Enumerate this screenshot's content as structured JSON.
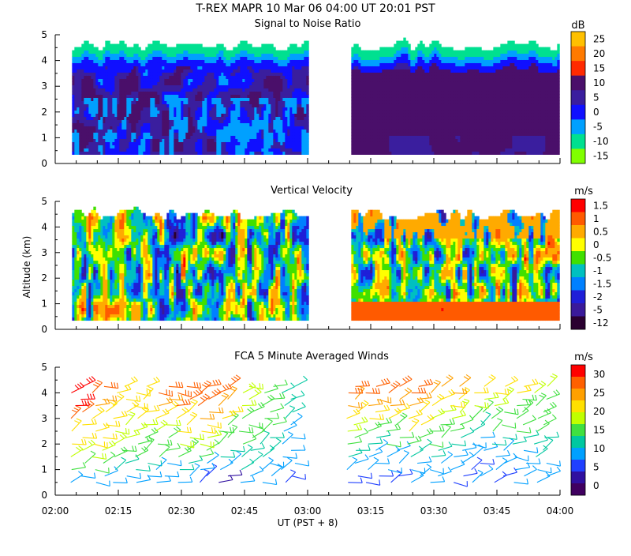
{
  "figure": {
    "title": "T-REX   MAPR 10 Mar 06   04:00 UT   20:01   PST",
    "x_axis_label": "UT  (PST + 8)",
    "x_ticks": [
      "02:00",
      "02:15",
      "02:30",
      "02:45",
      "03:00",
      "03:15",
      "03:30",
      "03:45",
      "04:00"
    ]
  },
  "chart_data": [
    {
      "type": "heatmap",
      "title": "Signal to Noise Ratio",
      "xlabel": "",
      "ylabel": "",
      "xlim": [
        "02:00",
        "04:00"
      ],
      "ylim": [
        0,
        5
      ],
      "y_ticks": [
        0,
        1,
        2,
        3,
        4,
        5
      ],
      "colorbar": {
        "unit": "dB",
        "labels": [
          "25",
          "20",
          "15",
          "10",
          "5",
          "0",
          "-5",
          "-10",
          "-15"
        ],
        "colors": [
          "#ffc000",
          "#ff7a00",
          "#ff2a00",
          "#4a0f6a",
          "#3a1e9e",
          "#1010ff",
          "#00a0ff",
          "#00e090",
          "#80ff00"
        ]
      },
      "data_gap": {
        "start": "03:00",
        "end": "03:10"
      },
      "coverage_altitude_km": [
        0.35,
        4.8
      ],
      "description_values": {
        "dominant_db": "5 to 10",
        "max_db": "20"
      }
    },
    {
      "type": "heatmap",
      "title": "Vertical Velocity",
      "xlabel": "",
      "ylabel": "Altitude (km)",
      "xlim": [
        "02:00",
        "04:00"
      ],
      "ylim": [
        0,
        5
      ],
      "y_ticks": [
        0,
        1,
        2,
        3,
        4,
        5
      ],
      "colorbar": {
        "unit": "m/s",
        "labels": [
          "1.5",
          "1",
          "0.5",
          "0",
          "-0.5",
          "-1",
          "-1.5",
          "-2",
          "-5",
          "-12"
        ],
        "colors": [
          "#ff0000",
          "#ff5a00",
          "#ffaa00",
          "#ffff00",
          "#40e000",
          "#00c0c0",
          "#0080ff",
          "#1f1fd8",
          "#3a1a9a",
          "#2a0030"
        ]
      },
      "data_gap": {
        "start": "03:00",
        "end": "03:10"
      },
      "coverage_altitude_km": [
        0.35,
        4.7
      ]
    },
    {
      "type": "scatter",
      "title": "FCA 5 Minute Averaged Winds",
      "xlabel": "",
      "ylabel": "",
      "xlim": [
        "02:00",
        "04:00"
      ],
      "ylim": [
        0,
        5
      ],
      "y_ticks": [
        0,
        1,
        2,
        3,
        4,
        5
      ],
      "glyph": "wind-barb",
      "colorbar": {
        "unit": "m/s",
        "labels": [
          "30",
          "25",
          "20",
          "15",
          "10",
          "5",
          "0"
        ],
        "colors": [
          "#ff0000",
          "#ff6000",
          "#ffa000",
          "#ffe000",
          "#c0ff00",
          "#40e040",
          "#00c8a0",
          "#00a0ff",
          "#2040ff",
          "#3010a0",
          "#400060"
        ]
      },
      "time_columns": [
        "02:05",
        "02:10",
        "02:15",
        "02:20",
        "02:25",
        "02:30",
        "02:35",
        "02:40",
        "02:45",
        "02:50",
        "02:55",
        "03:10",
        "03:15",
        "03:20",
        "03:25",
        "03:30",
        "03:35",
        "03:40",
        "03:45",
        "03:50",
        "03:55"
      ],
      "altitudes_km": [
        0.5,
        1.0,
        1.5,
        2.0,
        2.5,
        3.0,
        3.5,
        4.0
      ],
      "speed_profiles_ms": [
        [
          10,
          14,
          18,
          20,
          22,
          28,
          30,
          30
        ],
        [
          10,
          14,
          18,
          20,
          20,
          22,
          24,
          28
        ],
        [
          10,
          12,
          16,
          18,
          18,
          20,
          22,
          22
        ],
        [
          8,
          12,
          15,
          16,
          18,
          20,
          22,
          22
        ],
        [
          8,
          10,
          14,
          16,
          18,
          20,
          24,
          26
        ],
        [
          8,
          12,
          15,
          18,
          20,
          22,
          26,
          28
        ],
        [
          5,
          10,
          14,
          18,
          20,
          24,
          26,
          28
        ],
        [
          4,
          8,
          12,
          14,
          16,
          20,
          24,
          28
        ],
        [
          10,
          12,
          12,
          14,
          16,
          16,
          18,
          18
        ],
        [
          8,
          10,
          12,
          12,
          14,
          14,
          15,
          14
        ],
        [
          6,
          8,
          10,
          10,
          10,
          12,
          12,
          12
        ],
        [
          6,
          8,
          12,
          14,
          18,
          20,
          24,
          26
        ],
        [
          6,
          8,
          10,
          12,
          16,
          20,
          24,
          26
        ],
        [
          6,
          8,
          10,
          14,
          16,
          20,
          24,
          28
        ],
        [
          8,
          10,
          12,
          16,
          20,
          22,
          24,
          26
        ],
        [
          8,
          10,
          12,
          14,
          16,
          18,
          22,
          24
        ],
        [
          6,
          10,
          10,
          12,
          14,
          18,
          22,
          24
        ],
        [
          8,
          6,
          8,
          10,
          12,
          14,
          18,
          20
        ],
        [
          6,
          8,
          10,
          12,
          14,
          16,
          18,
          22
        ],
        [
          8,
          10,
          10,
          12,
          14,
          14,
          16,
          20
        ],
        [
          8,
          10,
          12,
          12,
          14,
          16,
          16,
          18
        ]
      ]
    }
  ]
}
